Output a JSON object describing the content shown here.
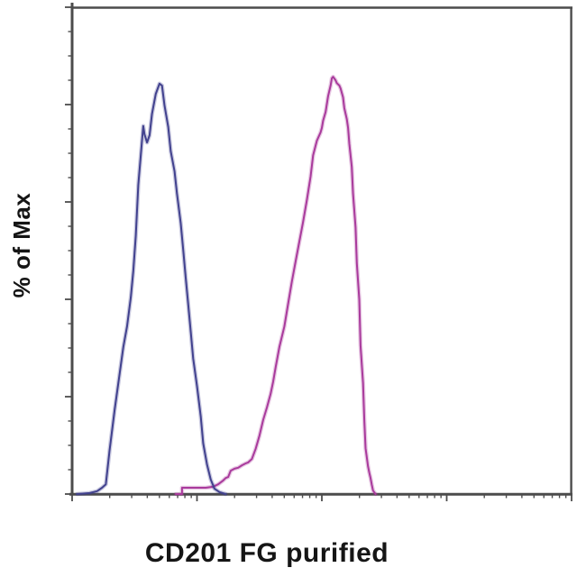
{
  "labels": {
    "y_axis": "% of Max",
    "x_axis": "CD201 FG purified"
  },
  "colors": {
    "background": "#ffffff",
    "axis": "#4c4c4c",
    "text": "#151515",
    "blue_curve": "#41418e",
    "magenta_curve": "#a93a9c"
  },
  "chart_data": {
    "type": "line",
    "subtype": "flow-cytometry-histogram-overlay",
    "title": "",
    "xlabel": "CD201 FG purified",
    "ylabel": "% of Max",
    "grid": false,
    "legend": "none",
    "x_axis": {
      "scale": "log",
      "decades_shown": 4,
      "numeric_tick_labels_visible": false,
      "major_ticks": "decade boundaries",
      "minor_ticks": "log positions 2-9 within each decade"
    },
    "y_axis": {
      "scale": "linear",
      "ylim": [
        0,
        100
      ],
      "numeric_tick_labels_visible": false,
      "major_ticks": [
        0,
        20,
        40,
        60,
        80,
        100
      ],
      "minor_tick_step": 5
    },
    "series": [
      {
        "key": "magenta",
        "name": "magenta-curve (right peak)",
        "color": "#a93a9c",
        "peak_percent_of_max": 85.7,
        "peak_x_decades": 2.09,
        "points": [
          [
            0.83,
            0
          ],
          [
            0.88,
            0
          ],
          [
            0.88,
            1.3
          ],
          [
            1.07,
            1.3
          ],
          [
            1.13,
            1.5
          ],
          [
            1.17,
            2.0
          ],
          [
            1.21,
            2.8
          ],
          [
            1.23,
            3.3
          ],
          [
            1.25,
            3.5
          ],
          [
            1.27,
            4.8
          ],
          [
            1.3,
            5.2
          ],
          [
            1.33,
            5.4
          ],
          [
            1.36,
            5.9
          ],
          [
            1.39,
            6.3
          ],
          [
            1.41,
            6.5
          ],
          [
            1.44,
            7.2
          ],
          [
            1.47,
            9.3
          ],
          [
            1.5,
            12.0
          ],
          [
            1.53,
            15.2
          ],
          [
            1.56,
            17.8
          ],
          [
            1.59,
            20.6
          ],
          [
            1.61,
            23.1
          ],
          [
            1.63,
            26.1
          ],
          [
            1.66,
            30.2
          ],
          [
            1.7,
            34.4
          ],
          [
            1.73,
            39.1
          ],
          [
            1.76,
            43.7
          ],
          [
            1.79,
            47.8
          ],
          [
            1.82,
            51.9
          ],
          [
            1.85,
            55.9
          ],
          [
            1.88,
            60.4
          ],
          [
            1.91,
            65.2
          ],
          [
            1.93,
            69.6
          ],
          [
            1.96,
            72.6
          ],
          [
            1.99,
            74.3
          ],
          [
            2.0,
            75.2
          ],
          [
            2.01,
            76.7
          ],
          [
            2.03,
            78.5
          ],
          [
            2.05,
            81.7
          ],
          [
            2.07,
            83.9
          ],
          [
            2.08,
            85.4
          ],
          [
            2.09,
            85.7
          ],
          [
            2.11,
            85.0
          ],
          [
            2.12,
            84.4
          ],
          [
            2.14,
            83.9
          ],
          [
            2.15,
            83.3
          ],
          [
            2.17,
            81.5
          ],
          [
            2.18,
            79.3
          ],
          [
            2.2,
            77.0
          ],
          [
            2.21,
            75.2
          ],
          [
            2.22,
            71.9
          ],
          [
            2.24,
            67.2
          ],
          [
            2.25,
            61.7
          ],
          [
            2.27,
            54.8
          ],
          [
            2.28,
            47.4
          ],
          [
            2.3,
            40.0
          ],
          [
            2.31,
            30.5
          ],
          [
            2.33,
            22.8
          ],
          [
            2.34,
            15.2
          ],
          [
            2.35,
            9.4
          ],
          [
            2.37,
            5.7
          ],
          [
            2.38,
            4.4
          ],
          [
            2.39,
            3.3
          ],
          [
            2.4,
            1.9
          ],
          [
            2.41,
            0.7
          ],
          [
            2.43,
            0
          ]
        ]
      },
      {
        "key": "blue",
        "name": "blue-curve (left peak)",
        "color": "#41418e",
        "peak_percent_of_max": 84.3,
        "peak_x_decades": 0.7,
        "points": [
          [
            0.04,
            0
          ],
          [
            0.14,
            0.2
          ],
          [
            0.2,
            0.6
          ],
          [
            0.24,
            1.3
          ],
          [
            0.27,
            2.0
          ],
          [
            0.3,
            8.9
          ],
          [
            0.34,
            17.2
          ],
          [
            0.38,
            24.6
          ],
          [
            0.41,
            30.2
          ],
          [
            0.44,
            34.4
          ],
          [
            0.47,
            40.4
          ],
          [
            0.49,
            45.9
          ],
          [
            0.51,
            53.0
          ],
          [
            0.53,
            63.5
          ],
          [
            0.56,
            72.8
          ],
          [
            0.57,
            75.6
          ],
          [
            0.58,
            73.9
          ],
          [
            0.6,
            72.2
          ],
          [
            0.62,
            73.7
          ],
          [
            0.64,
            78.1
          ],
          [
            0.67,
            82.2
          ],
          [
            0.7,
            84.3
          ],
          [
            0.72,
            83.9
          ],
          [
            0.74,
            79.8
          ],
          [
            0.77,
            75.4
          ],
          [
            0.79,
            70.4
          ],
          [
            0.82,
            66.3
          ],
          [
            0.84,
            61.7
          ],
          [
            0.87,
            55.6
          ],
          [
            0.89,
            50.0
          ],
          [
            0.91,
            44.4
          ],
          [
            0.93,
            38.9
          ],
          [
            0.95,
            33.3
          ],
          [
            0.97,
            27.8
          ],
          [
            1.0,
            22.2
          ],
          [
            1.03,
            15.9
          ],
          [
            1.05,
            10.4
          ],
          [
            1.08,
            6.1
          ],
          [
            1.11,
            3.0
          ],
          [
            1.14,
            1.1
          ],
          [
            1.18,
            0.4
          ],
          [
            1.23,
            0
          ]
        ]
      }
    ]
  }
}
